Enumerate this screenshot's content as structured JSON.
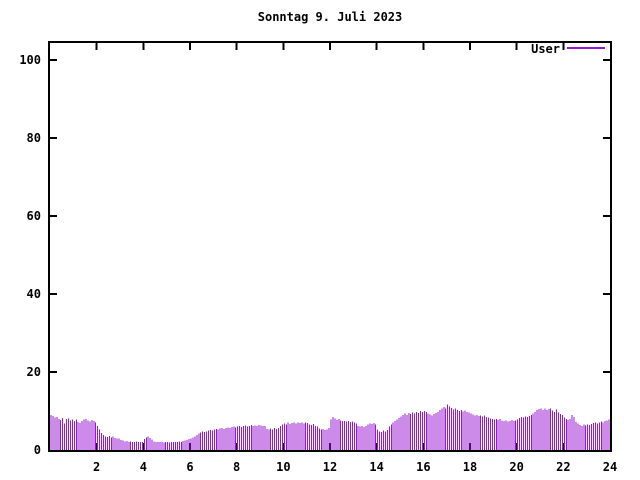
{
  "title": "Sonntag 9. Juli 2023",
  "legend": {
    "label": "User"
  },
  "colors": {
    "series": "#9a16d3",
    "axis": "#000000",
    "background": "#ffffff"
  },
  "axes": {
    "y_ticks": [
      0,
      20,
      40,
      60,
      80,
      100
    ],
    "x_ticks": [
      2,
      4,
      6,
      8,
      10,
      12,
      14,
      16,
      18,
      20,
      22,
      24
    ]
  },
  "chart_data": {
    "type": "bar",
    "title": "Sonntag 9. Juli 2023",
    "xlabel": "",
    "ylabel": "",
    "x_unit": "hour of day",
    "xlim": [
      0,
      24
    ],
    "ylim": [
      0,
      104
    ],
    "sample_interval_minutes": 5,
    "grid": false,
    "legend_position": "top-right-inside",
    "series": [
      {
        "name": "User",
        "color": "#9a16d3",
        "style": "impulses",
        "values": [
          9.0,
          8.7,
          8.3,
          8.5,
          8.0,
          7.7,
          8.2,
          6.8,
          7.9,
          8.1,
          7.6,
          7.8,
          7.4,
          7.8,
          7.2,
          6.9,
          7.5,
          7.8,
          8.0,
          7.6,
          7.3,
          7.7,
          7.4,
          7.1,
          6.2,
          5.3,
          4.4,
          3.8,
          3.5,
          3.3,
          3.6,
          3.2,
          3.4,
          3.1,
          2.9,
          3.0,
          2.6,
          2.4,
          2.2,
          2.3,
          2.1,
          2.2,
          2.0,
          2.1,
          2.2,
          2.0,
          2.1,
          2.0,
          2.8,
          3.2,
          3.4,
          3.1,
          2.7,
          2.2,
          2.1,
          2.0,
          2.1,
          2.0,
          1.9,
          2.0,
          2.0,
          1.9,
          2.1,
          2.0,
          2.1,
          2.0,
          2.2,
          2.1,
          2.3,
          2.5,
          2.6,
          2.8,
          3.0,
          3.2,
          3.5,
          3.8,
          4.2,
          4.5,
          4.7,
          4.6,
          4.8,
          5.0,
          5.1,
          5.0,
          5.2,
          5.4,
          5.3,
          5.5,
          5.6,
          5.4,
          5.7,
          5.8,
          5.6,
          5.9,
          6.0,
          5.8,
          6.0,
          6.2,
          5.9,
          6.1,
          6.3,
          6.0,
          6.2,
          6.4,
          6.1,
          6.3,
          6.2,
          6.4,
          6.3,
          6.1,
          6.2,
          5.4,
          5.2,
          5.5,
          5.3,
          5.6,
          5.4,
          5.7,
          6.2,
          6.5,
          6.8,
          6.6,
          7.0,
          6.7,
          6.9,
          7.1,
          6.8,
          7.0,
          6.9,
          7.1,
          6.8,
          7.0,
          6.9,
          6.6,
          6.4,
          6.7,
          6.2,
          6.0,
          5.5,
          5.2,
          5.4,
          5.1,
          5.3,
          5.6,
          7.8,
          8.5,
          8.1,
          7.7,
          8.0,
          7.6,
          7.4,
          7.5,
          7.3,
          7.4,
          7.2,
          7.3,
          7.1,
          6.8,
          6.2,
          6.0,
          6.1,
          5.9,
          6.2,
          6.6,
          6.8,
          6.7,
          6.9,
          6.6,
          5.2,
          4.8,
          4.6,
          5.0,
          4.7,
          5.1,
          6.0,
          6.5,
          7.0,
          7.4,
          7.8,
          8.2,
          8.6,
          9.0,
          9.3,
          9.0,
          9.5,
          9.2,
          9.6,
          9.4,
          9.8,
          9.5,
          10.0,
          9.7,
          10.0,
          9.7,
          9.4,
          9.1,
          8.9,
          9.2,
          9.5,
          9.8,
          10.2,
          10.6,
          11.0,
          10.7,
          11.7,
          11.2,
          10.8,
          10.4,
          10.6,
          10.2,
          10.0,
          10.3,
          9.9,
          10.1,
          9.8,
          9.6,
          9.4,
          9.1,
          8.8,
          9.0,
          8.7,
          8.9,
          8.6,
          8.8,
          8.5,
          8.3,
          8.1,
          7.9,
          7.8,
          8.0,
          7.7,
          7.9,
          7.6,
          7.4,
          7.6,
          7.3,
          7.5,
          7.7,
          7.4,
          7.6,
          7.8,
          8.2,
          8.5,
          8.3,
          8.6,
          8.4,
          8.7,
          9.0,
          9.4,
          9.8,
          10.2,
          10.5,
          10.7,
          10.3,
          10.6,
          10.2,
          10.5,
          10.7,
          10.1,
          9.8,
          10.4,
          9.6,
          9.2,
          9.0,
          8.3,
          7.9,
          7.7,
          8.0,
          9.0,
          8.5,
          7.2,
          6.8,
          6.4,
          6.2,
          6.5,
          6.3,
          6.6,
          6.4,
          6.7,
          6.9,
          7.1,
          6.8,
          7.0,
          7.3,
          7.1,
          7.4,
          7.6,
          7.8
        ]
      }
    ]
  }
}
